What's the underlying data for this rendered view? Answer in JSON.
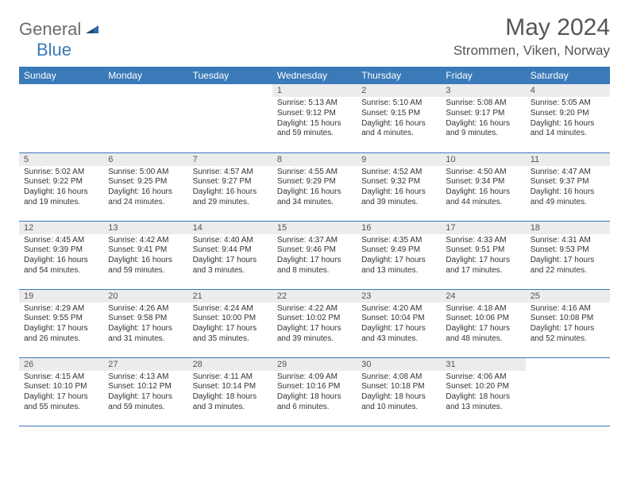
{
  "logo": {
    "general": "General",
    "blue": "Blue"
  },
  "header": {
    "month_title": "May 2024",
    "location": "Strommen, Viken, Norway"
  },
  "colors": {
    "header_bg": "#3a7ab8",
    "header_text": "#ffffff",
    "daynum_bg": "#ececec",
    "body_text": "#333333",
    "rule": "#3a7ab8"
  },
  "weekdays": [
    "Sunday",
    "Monday",
    "Tuesday",
    "Wednesday",
    "Thursday",
    "Friday",
    "Saturday"
  ],
  "weeks": [
    [
      {
        "day": ""
      },
      {
        "day": ""
      },
      {
        "day": ""
      },
      {
        "day": "1",
        "sunrise": "Sunrise: 5:13 AM",
        "sunset": "Sunset: 9:12 PM",
        "daylight1": "Daylight: 15 hours",
        "daylight2": "and 59 minutes."
      },
      {
        "day": "2",
        "sunrise": "Sunrise: 5:10 AM",
        "sunset": "Sunset: 9:15 PM",
        "daylight1": "Daylight: 16 hours",
        "daylight2": "and 4 minutes."
      },
      {
        "day": "3",
        "sunrise": "Sunrise: 5:08 AM",
        "sunset": "Sunset: 9:17 PM",
        "daylight1": "Daylight: 16 hours",
        "daylight2": "and 9 minutes."
      },
      {
        "day": "4",
        "sunrise": "Sunrise: 5:05 AM",
        "sunset": "Sunset: 9:20 PM",
        "daylight1": "Daylight: 16 hours",
        "daylight2": "and 14 minutes."
      }
    ],
    [
      {
        "day": "5",
        "sunrise": "Sunrise: 5:02 AM",
        "sunset": "Sunset: 9:22 PM",
        "daylight1": "Daylight: 16 hours",
        "daylight2": "and 19 minutes."
      },
      {
        "day": "6",
        "sunrise": "Sunrise: 5:00 AM",
        "sunset": "Sunset: 9:25 PM",
        "daylight1": "Daylight: 16 hours",
        "daylight2": "and 24 minutes."
      },
      {
        "day": "7",
        "sunrise": "Sunrise: 4:57 AM",
        "sunset": "Sunset: 9:27 PM",
        "daylight1": "Daylight: 16 hours",
        "daylight2": "and 29 minutes."
      },
      {
        "day": "8",
        "sunrise": "Sunrise: 4:55 AM",
        "sunset": "Sunset: 9:29 PM",
        "daylight1": "Daylight: 16 hours",
        "daylight2": "and 34 minutes."
      },
      {
        "day": "9",
        "sunrise": "Sunrise: 4:52 AM",
        "sunset": "Sunset: 9:32 PM",
        "daylight1": "Daylight: 16 hours",
        "daylight2": "and 39 minutes."
      },
      {
        "day": "10",
        "sunrise": "Sunrise: 4:50 AM",
        "sunset": "Sunset: 9:34 PM",
        "daylight1": "Daylight: 16 hours",
        "daylight2": "and 44 minutes."
      },
      {
        "day": "11",
        "sunrise": "Sunrise: 4:47 AM",
        "sunset": "Sunset: 9:37 PM",
        "daylight1": "Daylight: 16 hours",
        "daylight2": "and 49 minutes."
      }
    ],
    [
      {
        "day": "12",
        "sunrise": "Sunrise: 4:45 AM",
        "sunset": "Sunset: 9:39 PM",
        "daylight1": "Daylight: 16 hours",
        "daylight2": "and 54 minutes."
      },
      {
        "day": "13",
        "sunrise": "Sunrise: 4:42 AM",
        "sunset": "Sunset: 9:41 PM",
        "daylight1": "Daylight: 16 hours",
        "daylight2": "and 59 minutes."
      },
      {
        "day": "14",
        "sunrise": "Sunrise: 4:40 AM",
        "sunset": "Sunset: 9:44 PM",
        "daylight1": "Daylight: 17 hours",
        "daylight2": "and 3 minutes."
      },
      {
        "day": "15",
        "sunrise": "Sunrise: 4:37 AM",
        "sunset": "Sunset: 9:46 PM",
        "daylight1": "Daylight: 17 hours",
        "daylight2": "and 8 minutes."
      },
      {
        "day": "16",
        "sunrise": "Sunrise: 4:35 AM",
        "sunset": "Sunset: 9:49 PM",
        "daylight1": "Daylight: 17 hours",
        "daylight2": "and 13 minutes."
      },
      {
        "day": "17",
        "sunrise": "Sunrise: 4:33 AM",
        "sunset": "Sunset: 9:51 PM",
        "daylight1": "Daylight: 17 hours",
        "daylight2": "and 17 minutes."
      },
      {
        "day": "18",
        "sunrise": "Sunrise: 4:31 AM",
        "sunset": "Sunset: 9:53 PM",
        "daylight1": "Daylight: 17 hours",
        "daylight2": "and 22 minutes."
      }
    ],
    [
      {
        "day": "19",
        "sunrise": "Sunrise: 4:29 AM",
        "sunset": "Sunset: 9:55 PM",
        "daylight1": "Daylight: 17 hours",
        "daylight2": "and 26 minutes."
      },
      {
        "day": "20",
        "sunrise": "Sunrise: 4:26 AM",
        "sunset": "Sunset: 9:58 PM",
        "daylight1": "Daylight: 17 hours",
        "daylight2": "and 31 minutes."
      },
      {
        "day": "21",
        "sunrise": "Sunrise: 4:24 AM",
        "sunset": "Sunset: 10:00 PM",
        "daylight1": "Daylight: 17 hours",
        "daylight2": "and 35 minutes."
      },
      {
        "day": "22",
        "sunrise": "Sunrise: 4:22 AM",
        "sunset": "Sunset: 10:02 PM",
        "daylight1": "Daylight: 17 hours",
        "daylight2": "and 39 minutes."
      },
      {
        "day": "23",
        "sunrise": "Sunrise: 4:20 AM",
        "sunset": "Sunset: 10:04 PM",
        "daylight1": "Daylight: 17 hours",
        "daylight2": "and 43 minutes."
      },
      {
        "day": "24",
        "sunrise": "Sunrise: 4:18 AM",
        "sunset": "Sunset: 10:06 PM",
        "daylight1": "Daylight: 17 hours",
        "daylight2": "and 48 minutes."
      },
      {
        "day": "25",
        "sunrise": "Sunrise: 4:16 AM",
        "sunset": "Sunset: 10:08 PM",
        "daylight1": "Daylight: 17 hours",
        "daylight2": "and 52 minutes."
      }
    ],
    [
      {
        "day": "26",
        "sunrise": "Sunrise: 4:15 AM",
        "sunset": "Sunset: 10:10 PM",
        "daylight1": "Daylight: 17 hours",
        "daylight2": "and 55 minutes."
      },
      {
        "day": "27",
        "sunrise": "Sunrise: 4:13 AM",
        "sunset": "Sunset: 10:12 PM",
        "daylight1": "Daylight: 17 hours",
        "daylight2": "and 59 minutes."
      },
      {
        "day": "28",
        "sunrise": "Sunrise: 4:11 AM",
        "sunset": "Sunset: 10:14 PM",
        "daylight1": "Daylight: 18 hours",
        "daylight2": "and 3 minutes."
      },
      {
        "day": "29",
        "sunrise": "Sunrise: 4:09 AM",
        "sunset": "Sunset: 10:16 PM",
        "daylight1": "Daylight: 18 hours",
        "daylight2": "and 6 minutes."
      },
      {
        "day": "30",
        "sunrise": "Sunrise: 4:08 AM",
        "sunset": "Sunset: 10:18 PM",
        "daylight1": "Daylight: 18 hours",
        "daylight2": "and 10 minutes."
      },
      {
        "day": "31",
        "sunrise": "Sunrise: 4:06 AM",
        "sunset": "Sunset: 10:20 PM",
        "daylight1": "Daylight: 18 hours",
        "daylight2": "and 13 minutes."
      },
      {
        "day": ""
      }
    ]
  ]
}
